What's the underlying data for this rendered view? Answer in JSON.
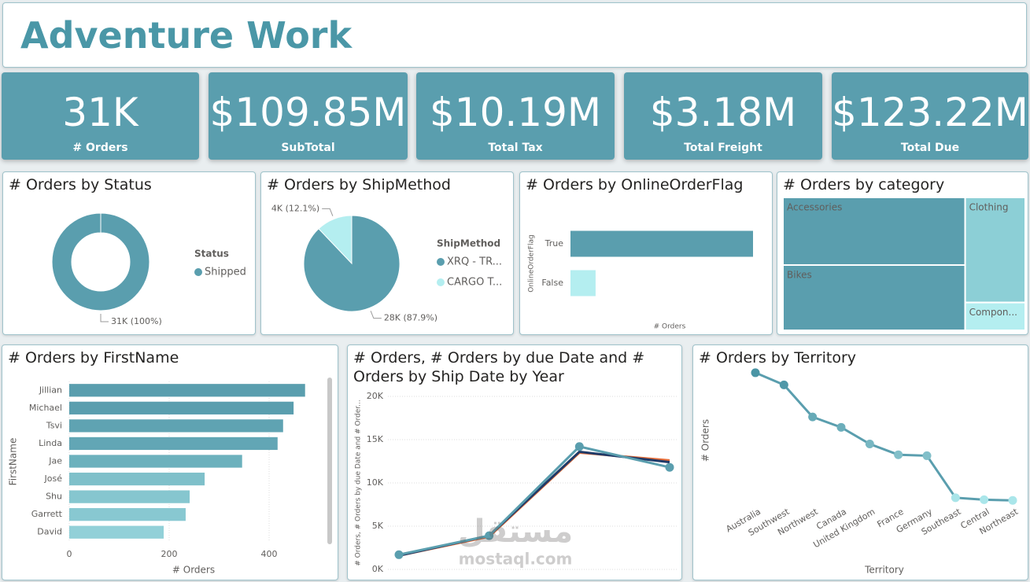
{
  "title": "Adventure Work",
  "kpis": [
    {
      "value": "31K",
      "label": "# Orders"
    },
    {
      "value": "$109.85M",
      "label": "SubTotal"
    },
    {
      "value": "$10.19M",
      "label": "Total Tax"
    },
    {
      "value": "$3.18M",
      "label": "Total Freight"
    },
    {
      "value": "$123.22M",
      "label": "Total Due"
    }
  ],
  "watermark": [
    "مستقل",
    "mostaql.com"
  ],
  "chart_data": [
    {
      "type": "donut",
      "title": "# Orders by Status",
      "legend_title": "Status",
      "categories": [
        "Shipped"
      ],
      "values": [
        31465
      ],
      "value_labels": [
        "31K (100%)"
      ],
      "colors": [
        "#5a9eae"
      ]
    },
    {
      "type": "pie",
      "title": "# Orders by ShipMethod",
      "legend_title": "ShipMethod",
      "categories": [
        "XRQ - TR...",
        "CARGO T..."
      ],
      "values": [
        27659,
        3806
      ],
      "value_labels": [
        "28K (87.9%)",
        "4K (12.1%)"
      ],
      "colors": [
        "#5a9eae",
        "#b4eef0"
      ]
    },
    {
      "type": "hbar",
      "title": "# Orders by OnlineOrderFlag",
      "xlabel": "# Orders",
      "ylabel": "OnlineOrderFlag",
      "categories": [
        "True",
        "False"
      ],
      "values": [
        27659,
        3806
      ],
      "colors": [
        "#5a9eae",
        "#b4eef0"
      ],
      "xlim": [
        0,
        27659
      ]
    },
    {
      "type": "treemap",
      "title": "# Orders by category",
      "categories": [
        "Accessories",
        "Bikes",
        "Clothing",
        "Compon..."
      ],
      "values": [
        46400,
        44800,
        23800,
        6300
      ],
      "colors": [
        "#5a9eae",
        "#5a9eae",
        "#8ccfd6",
        "#b4eef0"
      ]
    },
    {
      "type": "hbar",
      "title": "# Orders by FirstName",
      "xlabel": "# Orders",
      "ylabel": "FirstName",
      "categories": [
        "Jillian",
        "Michael",
        "Tsvi",
        "Linda",
        "Jae",
        "José",
        "Shu",
        "Garrett",
        "David"
      ],
      "values": [
        472,
        449,
        428,
        417,
        346,
        271,
        241,
        233,
        189
      ],
      "colors": [
        "#5a9eae",
        "#5a9eae",
        "#5fa3b2",
        "#62a6b5",
        "#6cb1bd",
        "#7fc0ca",
        "#86c6cf",
        "#88c8d1",
        "#92d0d8"
      ],
      "xlim": [
        0,
        500
      ],
      "xticks": [
        0,
        200,
        400
      ],
      "grid": true
    },
    {
      "type": "line",
      "title": "# Orders, # Orders by due Date and # Orders by Ship Date by Year",
      "ylabel": "# Orders, # Orders by due Date and # Order...",
      "categories": [
        null,
        null,
        null,
        null
      ],
      "ylim": [
        0,
        20000
      ],
      "yticks": [
        {
          "value": 0,
          "label": "0K"
        },
        {
          "value": 5000,
          "label": "5K"
        },
        {
          "value": 10000,
          "label": "10K"
        },
        {
          "value": 15000,
          "label": "15K"
        },
        {
          "value": 20000,
          "label": "20K"
        }
      ],
      "grid": true,
      "series": [
        {
          "color": "#e66c37",
          "values": [
            1600,
            3800,
            13500,
            12600
          ]
        },
        {
          "color": "#1f3a68",
          "values": [
            1600,
            3900,
            13600,
            12400
          ]
        },
        {
          "color": "#5a9eae",
          "values": [
            1700,
            3900,
            14200,
            11800
          ]
        }
      ]
    },
    {
      "type": "line",
      "title": "# Orders by Territory",
      "xlabel": "Territory",
      "ylabel": "# Orders",
      "categories": [
        "Australia",
        "Southwest",
        "Northwest",
        "Canada",
        "United Kingdom",
        "France",
        "Germany",
        "Southeast",
        "Central",
        "Northeast"
      ],
      "values": [
        6843,
        6224,
        4594,
        4067,
        3219,
        2672,
        2623,
        486,
        385,
        352
      ],
      "color": "#5a9eae",
      "colors": [
        "#4a95a5",
        "#5098a8",
        "#66aab7",
        "#6caebb",
        "#78b7c2",
        "#82bfc9",
        "#82bfc9",
        "#a8e4e8",
        "#aae6ea",
        "#aae6ea"
      ],
      "ylim": [
        0,
        7000
      ]
    }
  ]
}
